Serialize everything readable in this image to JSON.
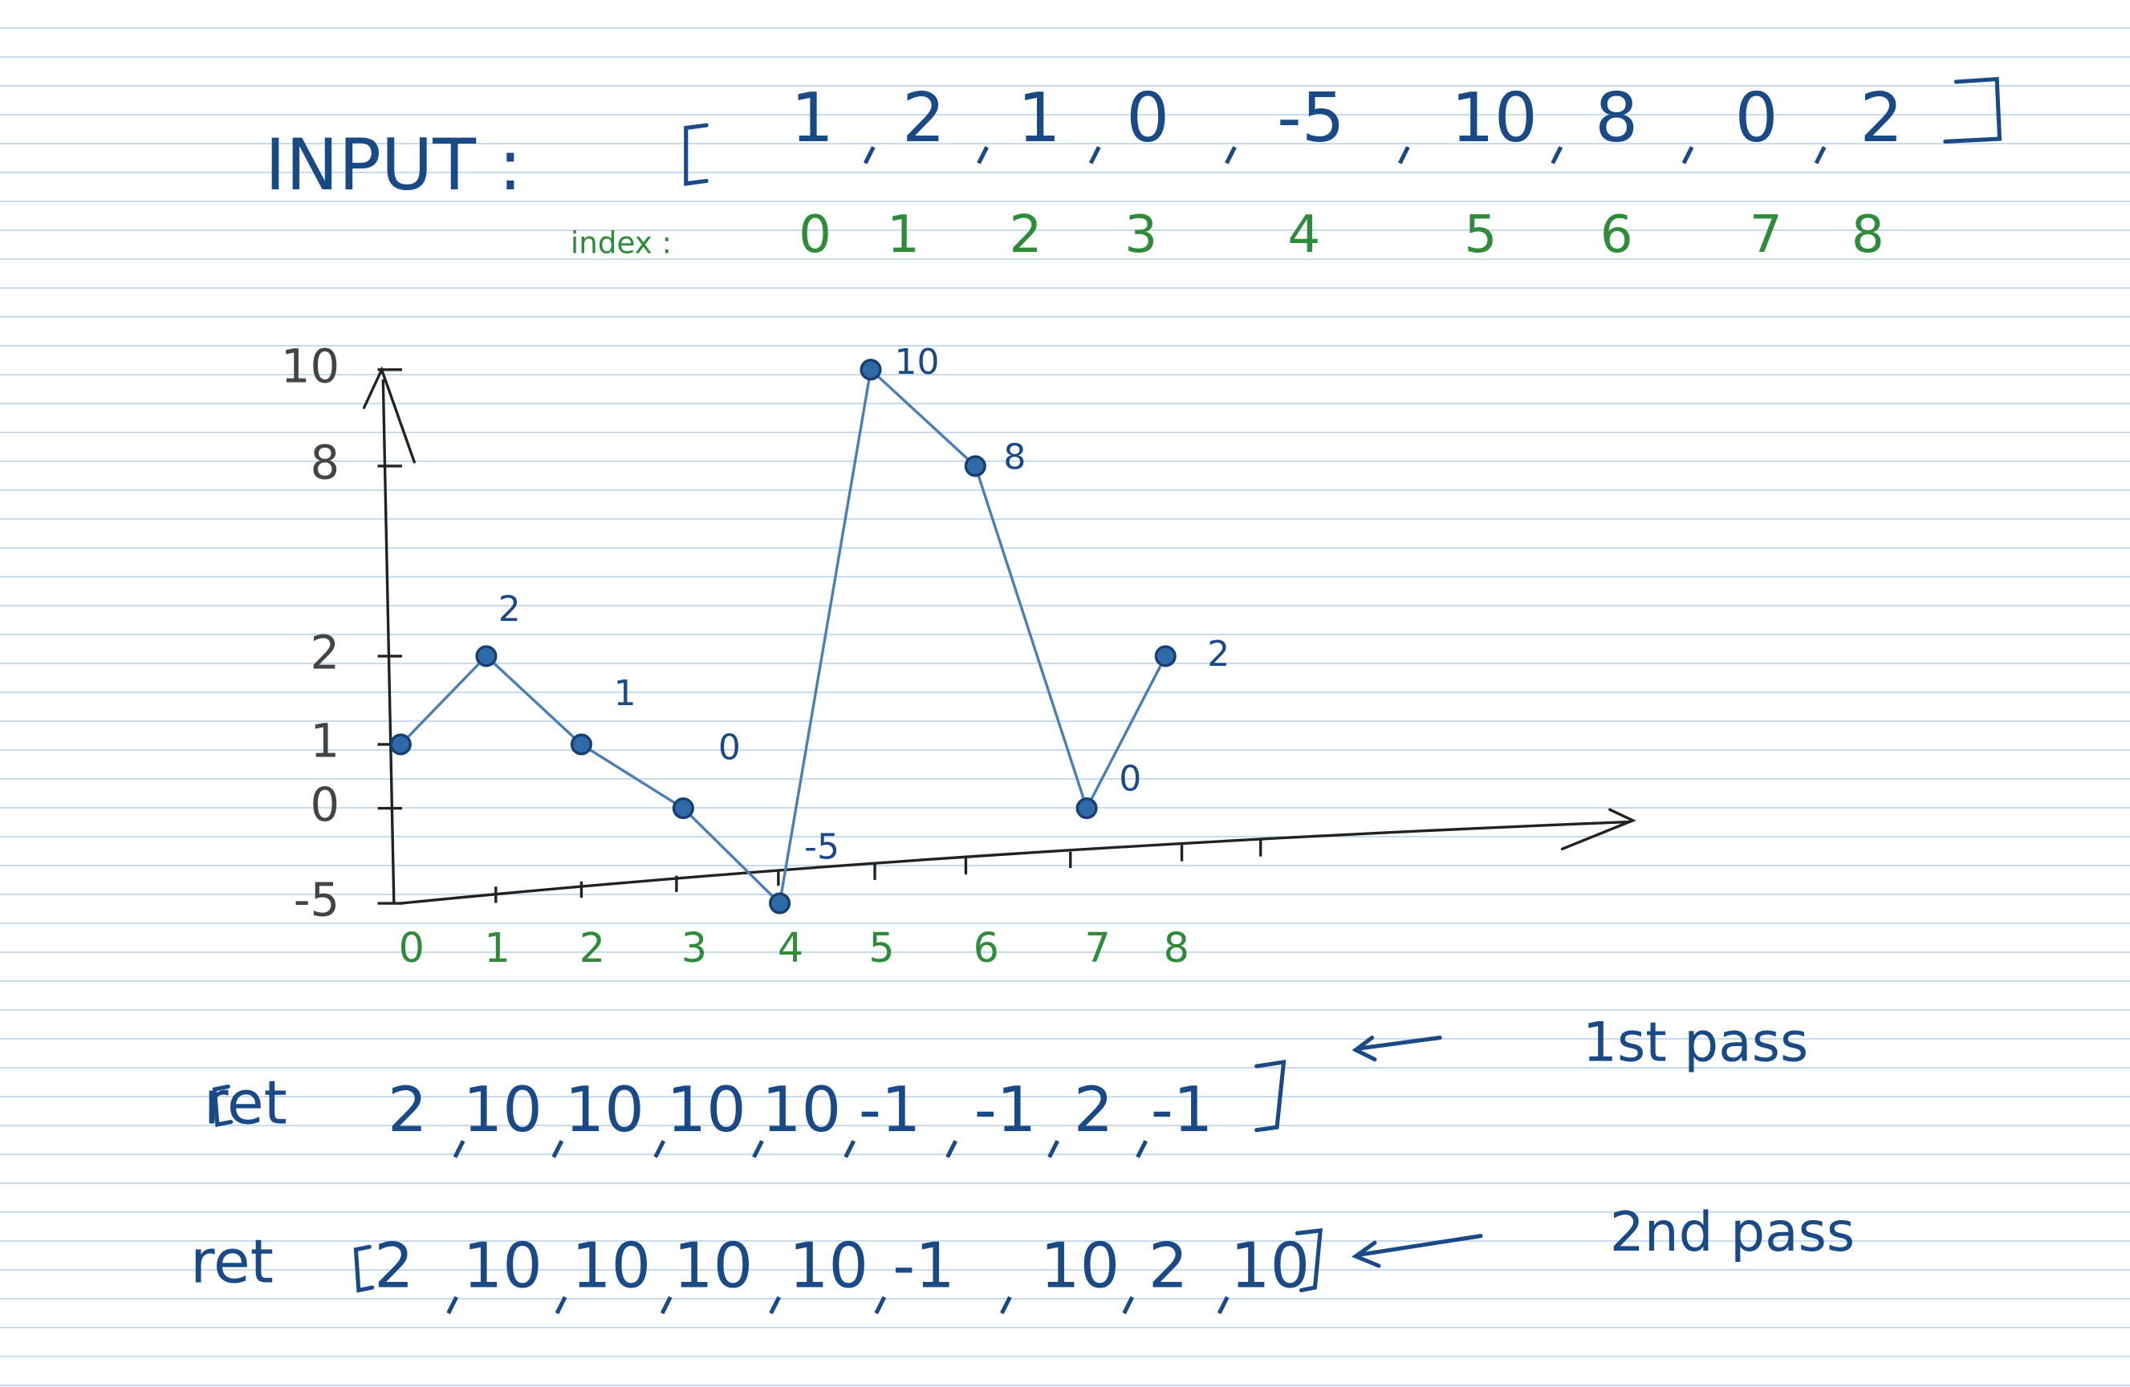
{
  "input": {
    "label": "INPUT :",
    "values": [
      1,
      2,
      1,
      0,
      -5,
      10,
      8,
      0,
      2
    ]
  },
  "index": {
    "label": "index :",
    "values": [
      0,
      1,
      2,
      3,
      4,
      5,
      6,
      7,
      8
    ]
  },
  "sketch": {
    "yticks": [
      10,
      8,
      2,
      1,
      0,
      -5
    ],
    "xticks": [
      0,
      1,
      2,
      3,
      4,
      5,
      6,
      7,
      8
    ]
  },
  "passes": [
    {
      "label": "ret",
      "values": [
        2,
        10,
        10,
        10,
        10,
        -1,
        -1,
        2,
        -1
      ],
      "note": "1st pass"
    },
    {
      "label": "ret",
      "values": [
        2,
        10,
        10,
        10,
        10,
        -1,
        10,
        2,
        10
      ],
      "note": "2nd pass"
    }
  ]
}
